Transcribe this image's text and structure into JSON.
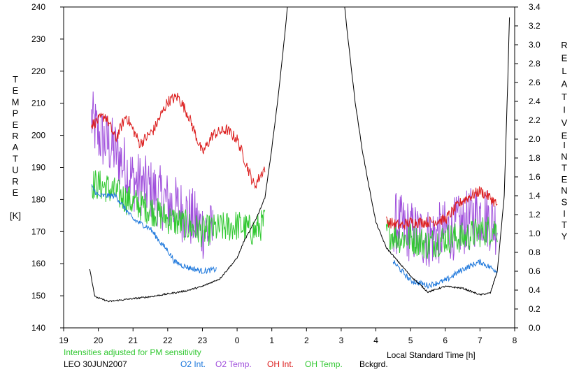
{
  "chart_data": {
    "type": "line",
    "x_ticks": [
      "19",
      "20",
      "21",
      "22",
      "23",
      "0",
      "1",
      "2",
      "3",
      "4",
      "5",
      "6",
      "7",
      "8"
    ],
    "xlabel": "Local Standard Time [h]",
    "y_left": {
      "label_letters": [
        "T",
        "E",
        "M",
        "P",
        "E",
        "R",
        "A",
        "T",
        "U",
        "R",
        "E"
      ],
      "unit": "[K]",
      "ylim": [
        140,
        240
      ],
      "ticks": [
        "140",
        "150",
        "160",
        "170",
        "180",
        "190",
        "200",
        "210",
        "220",
        "230",
        "240"
      ]
    },
    "y_right": {
      "label_word1": [
        "R",
        "E",
        "L",
        "A",
        "T",
        "I",
        "V",
        "E"
      ],
      "label_word2": [
        "I",
        "N",
        "T",
        "E",
        "N",
        "S",
        "I",
        "T",
        "Y"
      ],
      "ylim": [
        0.0,
        3.4
      ],
      "ticks": [
        "0.0",
        "0.2",
        "0.4",
        "0.6",
        "0.8",
        "1.0",
        "1.2",
        "1.4",
        "1.6",
        "1.8",
        "2.0",
        "2.2",
        "2.4",
        "2.6",
        "2.8",
        "3.0",
        "3.2",
        "3.4"
      ]
    },
    "note": "Intensities adjusted for PM sensitivity",
    "site_date": "LEO 30JUN2007",
    "legend": [
      {
        "name": "O2 Int.",
        "color": "#1e78dc"
      },
      {
        "name": "O2 Temp.",
        "color": "#a050dc"
      },
      {
        "name": "OH Int.",
        "color": "#dc1e1e"
      },
      {
        "name": "OH Temp.",
        "color": "#32c832"
      },
      {
        "name": "Bckgrd.",
        "color": "#000000"
      }
    ],
    "series": [
      {
        "key": "o2_temp",
        "axis": "left",
        "color": "#a050dc",
        "noise": 10,
        "evening": [
          [
            19.8,
            205
          ],
          [
            20.0,
            200
          ],
          [
            20.5,
            195
          ],
          [
            21.0,
            186
          ],
          [
            21.5,
            183
          ],
          [
            22.0,
            179
          ],
          [
            22.5,
            176
          ],
          [
            23.0,
            171
          ],
          [
            23.3,
            169
          ]
        ],
        "morning": [
          [
            4.5,
            173
          ],
          [
            5.0,
            170
          ],
          [
            5.5,
            168
          ],
          [
            6.0,
            170
          ],
          [
            6.5,
            172
          ],
          [
            7.0,
            176
          ],
          [
            7.5,
            172
          ]
        ]
      },
      {
        "key": "oh_temp",
        "axis": "left",
        "color": "#32c832",
        "noise": 5,
        "evening": [
          [
            19.8,
            185
          ],
          [
            20.2,
            184
          ],
          [
            20.5,
            182
          ],
          [
            21.0,
            179
          ],
          [
            21.5,
            177
          ],
          [
            22.0,
            174
          ],
          [
            22.5,
            172
          ],
          [
            23.0,
            170
          ],
          [
            23.5,
            171
          ],
          [
            24.0,
            172
          ],
          [
            24.5,
            170
          ],
          [
            24.8,
            173
          ]
        ],
        "morning": [
          [
            4.3,
            170
          ],
          [
            4.7,
            168
          ],
          [
            5.0,
            168
          ],
          [
            5.5,
            166
          ],
          [
            6.0,
            168
          ],
          [
            6.5,
            168
          ],
          [
            7.0,
            170
          ],
          [
            7.5,
            171
          ]
        ]
      },
      {
        "key": "oh_int",
        "axis": "right",
        "color": "#dc1e1e",
        "noise": 0.06,
        "evening": [
          [
            19.8,
            2.15
          ],
          [
            20.2,
            2.25
          ],
          [
            20.5,
            2.0
          ],
          [
            20.8,
            2.25
          ],
          [
            21.2,
            1.95
          ],
          [
            21.6,
            2.1
          ],
          [
            22.0,
            2.4
          ],
          [
            22.3,
            2.45
          ],
          [
            22.6,
            2.25
          ],
          [
            23.0,
            1.85
          ],
          [
            23.3,
            2.05
          ],
          [
            23.7,
            2.1
          ],
          [
            24.0,
            2.0
          ],
          [
            24.3,
            1.7
          ],
          [
            24.5,
            1.5
          ],
          [
            24.8,
            1.7
          ]
        ],
        "morning": [
          [
            4.3,
            1.13
          ],
          [
            4.7,
            1.08
          ],
          [
            5.0,
            1.12
          ],
          [
            5.5,
            1.12
          ],
          [
            6.0,
            1.15
          ],
          [
            6.5,
            1.35
          ],
          [
            7.0,
            1.45
          ],
          [
            7.3,
            1.38
          ],
          [
            7.5,
            1.3
          ]
        ]
      },
      {
        "key": "o2_int",
        "axis": "right",
        "color": "#1e78dc",
        "noise": 0.03,
        "evening": [
          [
            19.8,
            1.5
          ],
          [
            20.0,
            1.4
          ],
          [
            20.5,
            1.4
          ],
          [
            21.0,
            1.15
          ],
          [
            21.5,
            1.05
          ],
          [
            21.8,
            0.9
          ],
          [
            22.0,
            0.82
          ],
          [
            22.2,
            0.7
          ],
          [
            22.5,
            0.65
          ],
          [
            23.0,
            0.6
          ],
          [
            23.4,
            0.62
          ]
        ],
        "morning": [
          [
            4.5,
            0.7
          ],
          [
            5.0,
            0.5
          ],
          [
            5.5,
            0.45
          ],
          [
            6.0,
            0.5
          ],
          [
            6.5,
            0.62
          ],
          [
            7.0,
            0.7
          ],
          [
            7.5,
            0.6
          ]
        ]
      },
      {
        "key": "bckgrd",
        "axis": "right",
        "color": "#000000",
        "noise": 0.008,
        "evening": [
          [
            19.75,
            0.63
          ],
          [
            19.9,
            0.33
          ],
          [
            20.3,
            0.28
          ],
          [
            21.0,
            0.31
          ],
          [
            21.5,
            0.33
          ],
          [
            22.0,
            0.36
          ],
          [
            22.5,
            0.39
          ],
          [
            23.0,
            0.44
          ],
          [
            23.5,
            0.52
          ],
          [
            24.0,
            0.74
          ],
          [
            24.2,
            0.92
          ],
          [
            24.4,
            1.05
          ],
          [
            24.6,
            1.2
          ],
          [
            24.8,
            1.38
          ],
          [
            25.0,
            1.9
          ],
          [
            25.2,
            2.5
          ],
          [
            25.4,
            3.2
          ],
          [
            25.45,
            3.4
          ]
        ],
        "morning": [
          [
            3.1,
            3.4
          ],
          [
            3.2,
            3.05
          ],
          [
            3.4,
            2.4
          ],
          [
            3.6,
            1.9
          ],
          [
            3.8,
            1.5
          ],
          [
            4.0,
            1.12
          ],
          [
            4.3,
            0.85
          ],
          [
            4.6,
            0.72
          ],
          [
            5.0,
            0.55
          ],
          [
            5.5,
            0.38
          ],
          [
            6.0,
            0.44
          ],
          [
            6.5,
            0.42
          ],
          [
            7.0,
            0.35
          ],
          [
            7.3,
            0.37
          ],
          [
            7.5,
            0.6
          ],
          [
            7.7,
            1.4
          ],
          [
            7.8,
            2.6
          ],
          [
            7.85,
            3.29
          ]
        ]
      }
    ]
  }
}
